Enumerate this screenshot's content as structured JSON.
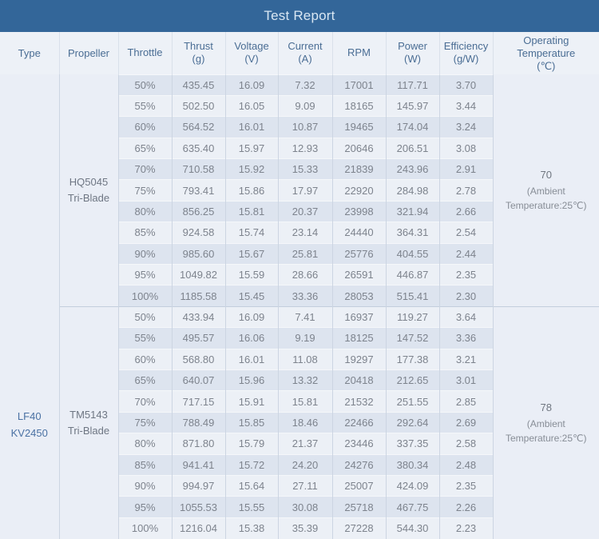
{
  "title": "Test Report",
  "colors": {
    "title_bar": "#336699",
    "title_text": "#d9e7f3",
    "header_bg": "#edf1f7",
    "header_text": "#4a6d94",
    "row_dark": "#dde4ef",
    "row_light": "#ecf0f6",
    "merged_cell_bg": "#eaeef6",
    "type_text": "#4a71a3",
    "data_text": "#7d838d"
  },
  "chart_data": {
    "type": "table",
    "title": "Test Report",
    "columns": [
      {
        "key": "type",
        "lines": [
          "Type"
        ]
      },
      {
        "key": "propeller",
        "lines": [
          "Propeller"
        ]
      },
      {
        "key": "throttle",
        "lines": [
          "Throttle"
        ]
      },
      {
        "key": "thrust",
        "lines": [
          "Thrust",
          "(g)"
        ]
      },
      {
        "key": "voltage",
        "lines": [
          "Voltage",
          "(V)"
        ]
      },
      {
        "key": "current",
        "lines": [
          "Current",
          "(A)"
        ]
      },
      {
        "key": "rpm",
        "lines": [
          "RPM"
        ]
      },
      {
        "key": "power",
        "lines": [
          "Power",
          "(W)"
        ]
      },
      {
        "key": "efficiency",
        "lines": [
          "Efficiency",
          "(g/W)"
        ]
      },
      {
        "key": "temperature",
        "lines": [
          "Operating",
          "Temperature",
          "(℃)"
        ]
      }
    ],
    "type_lines": [
      "LF40",
      "KV2450"
    ],
    "sections": [
      {
        "propeller_lines": [
          "HQ5045",
          "Tri-Blade"
        ],
        "temperature_value": "70",
        "temperature_note_lines": [
          "(Ambient",
          "Temperature:25℃)"
        ],
        "rows": [
          {
            "throttle": "50%",
            "thrust": "435.45",
            "voltage": "16.09",
            "current": "7.32",
            "rpm": "17001",
            "power": "117.71",
            "efficiency": "3.70"
          },
          {
            "throttle": "55%",
            "thrust": "502.50",
            "voltage": "16.05",
            "current": "9.09",
            "rpm": "18165",
            "power": "145.97",
            "efficiency": "3.44"
          },
          {
            "throttle": "60%",
            "thrust": "564.52",
            "voltage": "16.01",
            "current": "10.87",
            "rpm": "19465",
            "power": "174.04",
            "efficiency": "3.24"
          },
          {
            "throttle": "65%",
            "thrust": "635.40",
            "voltage": "15.97",
            "current": "12.93",
            "rpm": "20646",
            "power": "206.51",
            "efficiency": "3.08"
          },
          {
            "throttle": "70%",
            "thrust": "710.58",
            "voltage": "15.92",
            "current": "15.33",
            "rpm": "21839",
            "power": "243.96",
            "efficiency": "2.91"
          },
          {
            "throttle": "75%",
            "thrust": "793.41",
            "voltage": "15.86",
            "current": "17.97",
            "rpm": "22920",
            "power": "284.98",
            "efficiency": "2.78"
          },
          {
            "throttle": "80%",
            "thrust": "856.25",
            "voltage": "15.81",
            "current": "20.37",
            "rpm": "23998",
            "power": "321.94",
            "efficiency": "2.66"
          },
          {
            "throttle": "85%",
            "thrust": "924.58",
            "voltage": "15.74",
            "current": "23.14",
            "rpm": "24440",
            "power": "364.31",
            "efficiency": "2.54"
          },
          {
            "throttle": "90%",
            "thrust": "985.60",
            "voltage": "15.67",
            "current": "25.81",
            "rpm": "25776",
            "power": "404.55",
            "efficiency": "2.44"
          },
          {
            "throttle": "95%",
            "thrust": "1049.82",
            "voltage": "15.59",
            "current": "28.66",
            "rpm": "26591",
            "power": "446.87",
            "efficiency": "2.35"
          },
          {
            "throttle": "100%",
            "thrust": "1185.58",
            "voltage": "15.45",
            "current": "33.36",
            "rpm": "28053",
            "power": "515.41",
            "efficiency": "2.30"
          }
        ]
      },
      {
        "propeller_lines": [
          "TM5143",
          "Tri-Blade"
        ],
        "temperature_value": "78",
        "temperature_note_lines": [
          "(Ambient",
          "Temperature:25℃)"
        ],
        "rows": [
          {
            "throttle": "50%",
            "thrust": "433.94",
            "voltage": "16.09",
            "current": "7.41",
            "rpm": "16937",
            "power": "119.27",
            "efficiency": "3.64"
          },
          {
            "throttle": "55%",
            "thrust": "495.57",
            "voltage": "16.06",
            "current": "9.19",
            "rpm": "18125",
            "power": "147.52",
            "efficiency": "3.36"
          },
          {
            "throttle": "60%",
            "thrust": "568.80",
            "voltage": "16.01",
            "current": "11.08",
            "rpm": "19297",
            "power": "177.38",
            "efficiency": "3.21"
          },
          {
            "throttle": "65%",
            "thrust": "640.07",
            "voltage": "15.96",
            "current": "13.32",
            "rpm": "20418",
            "power": "212.65",
            "efficiency": "3.01"
          },
          {
            "throttle": "70%",
            "thrust": "717.15",
            "voltage": "15.91",
            "current": "15.81",
            "rpm": "21532",
            "power": "251.55",
            "efficiency": "2.85"
          },
          {
            "throttle": "75%",
            "thrust": "788.49",
            "voltage": "15.85",
            "current": "18.46",
            "rpm": "22466",
            "power": "292.64",
            "efficiency": "2.69"
          },
          {
            "throttle": "80%",
            "thrust": "871.80",
            "voltage": "15.79",
            "current": "21.37",
            "rpm": "23446",
            "power": "337.35",
            "efficiency": "2.58"
          },
          {
            "throttle": "85%",
            "thrust": "941.41",
            "voltage": "15.72",
            "current": "24.20",
            "rpm": "24276",
            "power": "380.34",
            "efficiency": "2.48"
          },
          {
            "throttle": "90%",
            "thrust": "994.97",
            "voltage": "15.64",
            "current": "27.11",
            "rpm": "25007",
            "power": "424.09",
            "efficiency": "2.35"
          },
          {
            "throttle": "95%",
            "thrust": "1055.53",
            "voltage": "15.55",
            "current": "30.08",
            "rpm": "25718",
            "power": "467.75",
            "efficiency": "2.26"
          },
          {
            "throttle": "100%",
            "thrust": "1216.04",
            "voltage": "15.38",
            "current": "35.39",
            "rpm": "27228",
            "power": "544.30",
            "efficiency": "2.23"
          }
        ]
      }
    ]
  }
}
